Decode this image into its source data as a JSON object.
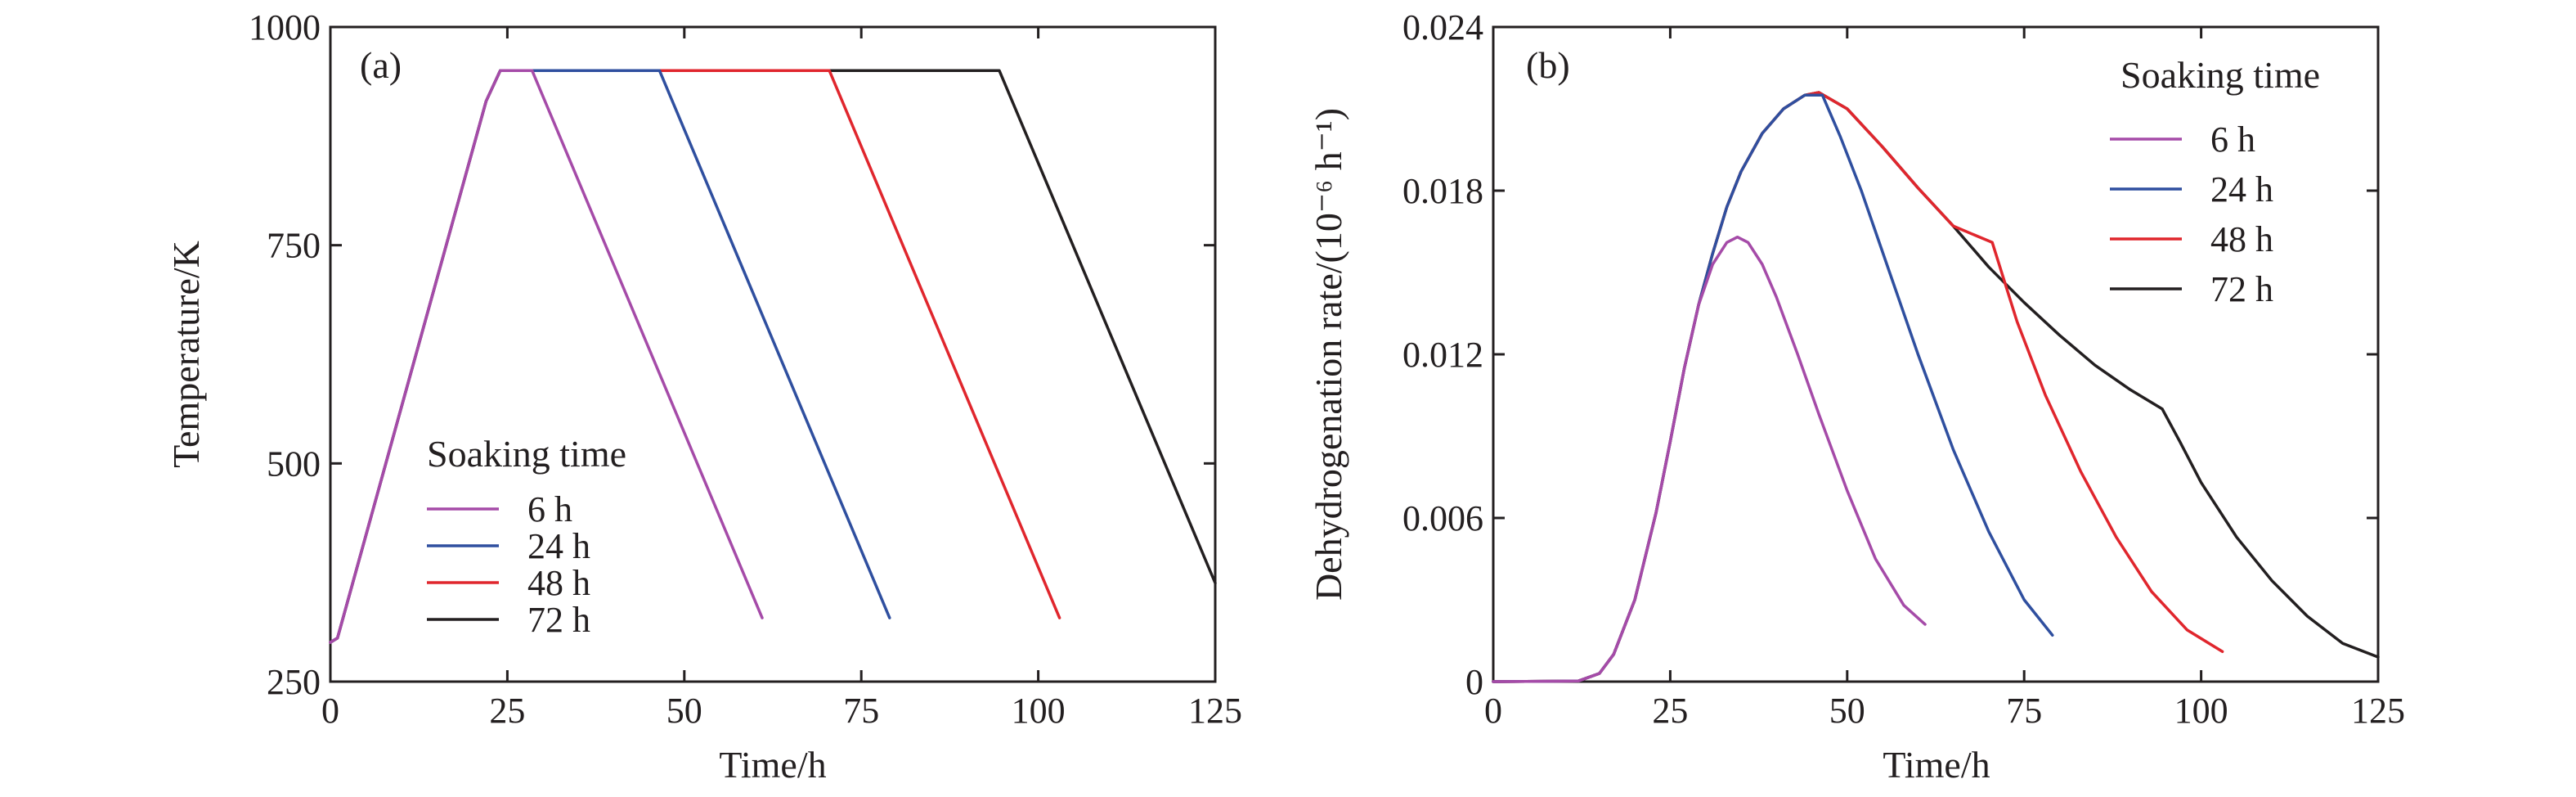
{
  "colors": {
    "s6": "#a54ba8",
    "s24": "#2f4f9f",
    "s48": "#e0262d",
    "s72": "#231f20",
    "axis": "#231f20"
  },
  "chart_data": [
    {
      "type": "line",
      "panel_label": "(a)",
      "title": "",
      "xlabel": "Time/h",
      "ylabel": "Temperature/K",
      "xlim": [
        0,
        125
      ],
      "ylim": [
        250,
        1000
      ],
      "xticks": [
        0,
        25,
        50,
        75,
        100,
        125
      ],
      "xtick_labels": [
        "0",
        "25",
        "50",
        "75",
        "100",
        "125"
      ],
      "yticks": [
        250,
        500,
        750,
        1000
      ],
      "ytick_labels": [
        "250",
        "500",
        "750",
        "1000"
      ],
      "grid": false,
      "legend": {
        "title": "Soaking time",
        "placement": "bottom-left",
        "entries": [
          "6 h",
          "24 h",
          "48 h",
          "72 h"
        ]
      },
      "series": [
        {
          "name": "6 h",
          "color_key": "s6",
          "x": [
            0,
            1,
            22,
            24,
            28.5,
            61
          ],
          "y": [
            295,
            300,
            915,
            950,
            950,
            323
          ]
        },
        {
          "name": "24 h",
          "color_key": "s24",
          "x": [
            0,
            1,
            22,
            24,
            46.5,
            79
          ],
          "y": [
            295,
            300,
            915,
            950,
            950,
            323
          ]
        },
        {
          "name": "48 h",
          "color_key": "s48",
          "x": [
            0,
            1,
            22,
            24,
            70.5,
            103
          ],
          "y": [
            295,
            300,
            915,
            950,
            950,
            323
          ]
        },
        {
          "name": "72 h",
          "color_key": "s72",
          "x": [
            0,
            1,
            22,
            24,
            94.5,
            125
          ],
          "y": [
            295,
            300,
            915,
            950,
            950,
            363
          ]
        }
      ]
    },
    {
      "type": "line",
      "panel_label": "(b)",
      "title": "",
      "xlabel": "Time/h",
      "ylabel": "Dehydrogenation rate/(10⁻⁶ h⁻¹)",
      "xlim": [
        0,
        125
      ],
      "ylim": [
        0,
        0.024
      ],
      "xticks": [
        0,
        25,
        50,
        75,
        100,
        125
      ],
      "xtick_labels": [
        "0",
        "25",
        "50",
        "75",
        "100",
        "125"
      ],
      "yticks": [
        0,
        0.006,
        0.012,
        0.018,
        0.024
      ],
      "ytick_labels": [
        "0",
        "0.006",
        "0.012",
        "0.018",
        "0.024"
      ],
      "grid": false,
      "legend": {
        "title": "Soaking time",
        "placement": "top-right",
        "entries": [
          "6 h",
          "24 h",
          "48 h",
          "72 h"
        ]
      },
      "series": [
        {
          "name": "6 h",
          "color_key": "s6",
          "x": [
            0,
            12,
            15,
            17,
            20,
            23,
            25,
            27,
            29,
            31,
            33,
            34.5,
            36,
            38,
            40,
            43,
            46,
            50,
            54,
            58,
            61
          ],
          "y": [
            0,
            2e-05,
            0.0003,
            0.001,
            0.003,
            0.0062,
            0.0088,
            0.0115,
            0.0138,
            0.0153,
            0.0161,
            0.0163,
            0.0161,
            0.0153,
            0.0141,
            0.012,
            0.0098,
            0.007,
            0.0045,
            0.0028,
            0.0021
          ]
        },
        {
          "name": "24 h",
          "color_key": "s24",
          "x": [
            0,
            12,
            15,
            17,
            20,
            23,
            25,
            27,
            29,
            31,
            33,
            35,
            38,
            41,
            44,
            46.5,
            49,
            52,
            56,
            60,
            65,
            70,
            75,
            79
          ],
          "y": [
            0,
            2e-05,
            0.0003,
            0.001,
            0.003,
            0.0062,
            0.0088,
            0.0115,
            0.0138,
            0.0157,
            0.0174,
            0.0187,
            0.0201,
            0.021,
            0.0215,
            0.0215,
            0.02,
            0.018,
            0.015,
            0.012,
            0.0085,
            0.0055,
            0.003,
            0.0017
          ]
        },
        {
          "name": "48 h",
          "color_key": "s48",
          "x": [
            0,
            12,
            15,
            17,
            20,
            23,
            25,
            27,
            29,
            31,
            33,
            35,
            38,
            41,
            44,
            46,
            50,
            55,
            60,
            65,
            70.5,
            74,
            78,
            83,
            88,
            93,
            98,
            103
          ],
          "y": [
            0,
            2e-05,
            0.0003,
            0.001,
            0.003,
            0.0062,
            0.0088,
            0.0115,
            0.0138,
            0.0157,
            0.0174,
            0.0187,
            0.0201,
            0.021,
            0.0215,
            0.0216,
            0.021,
            0.0196,
            0.0181,
            0.0167,
            0.0161,
            0.0132,
            0.0105,
            0.0077,
            0.0053,
            0.0033,
            0.0019,
            0.0011
          ]
        },
        {
          "name": "72 h",
          "color_key": "s72",
          "x": [
            0,
            12,
            15,
            17,
            20,
            23,
            25,
            27,
            29,
            31,
            33,
            35,
            38,
            41,
            44,
            46,
            50,
            55,
            60,
            65,
            70,
            75,
            80,
            85,
            90,
            94.5,
            97,
            100,
            105,
            110,
            115,
            120,
            125
          ],
          "y": [
            0,
            2e-05,
            0.0003,
            0.001,
            0.003,
            0.0062,
            0.0088,
            0.0115,
            0.0138,
            0.0157,
            0.0174,
            0.0187,
            0.0201,
            0.021,
            0.0215,
            0.0216,
            0.021,
            0.0196,
            0.0181,
            0.0167,
            0.0152,
            0.0139,
            0.0127,
            0.0116,
            0.0107,
            0.01,
            0.0088,
            0.0073,
            0.0053,
            0.0037,
            0.0024,
            0.0014,
            0.0009
          ]
        }
      ]
    }
  ]
}
